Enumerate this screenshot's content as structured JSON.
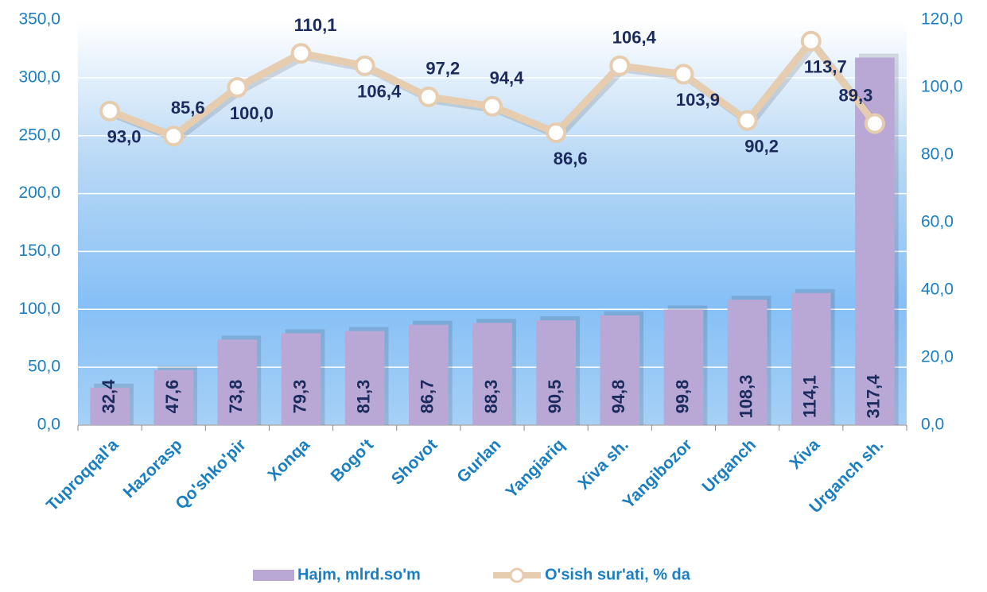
{
  "chart_data": {
    "type": "bar-line",
    "categories": [
      "Tuproqqal'a",
      "Hazorasp",
      "Qo'shko'pir",
      "Xonqa",
      "Bogo't",
      "Shovot",
      "Gurlan",
      "Yangiariq",
      "Xiva sh.",
      "Yangibozor",
      "Urganch",
      "Xiva",
      "Urganch sh."
    ],
    "series": [
      {
        "name": "Hajm, mlrd.so'm",
        "type": "bar",
        "color": "#b9a8d6",
        "values": [
          32.4,
          47.6,
          73.8,
          79.3,
          81.3,
          86.7,
          88.3,
          90.5,
          94.8,
          99.8,
          108.3,
          114.1,
          317.4
        ],
        "value_labels": [
          "32,4",
          "47,6",
          "73,8",
          "79,3",
          "81,3",
          "86,7",
          "88,3",
          "90,5",
          "94,8",
          "99,8",
          "108,3",
          "114,1",
          "317,4"
        ]
      },
      {
        "name": "O'sish sur'ati, % da",
        "type": "line",
        "axis": "y2",
        "color": "#e6cdb0",
        "values": [
          93.0,
          85.6,
          100.0,
          110.1,
          106.4,
          97.2,
          94.4,
          86.6,
          106.4,
          103.9,
          90.2,
          113.7,
          89.3
        ],
        "value_labels": [
          "93,0",
          "85,6",
          "100,0",
          "110,1",
          "106,4",
          "97,2",
          "94,4",
          "86,6",
          "106,4",
          "103,9",
          "90,2",
          "113,7",
          "89,3"
        ]
      }
    ],
    "ylim": [
      0,
      350
    ],
    "yticks": [
      {
        "value": 0,
        "label": "0,0"
      },
      {
        "value": 50,
        "label": "50,0"
      },
      {
        "value": 100,
        "label": "100,0"
      },
      {
        "value": 150,
        "label": "150,0"
      },
      {
        "value": 200,
        "label": "200,0"
      },
      {
        "value": 250,
        "label": "250,0"
      },
      {
        "value": 300,
        "label": "300,0"
      },
      {
        "value": 350,
        "label": "350,0"
      }
    ],
    "y2lim": [
      0,
      120
    ],
    "y2ticks": [
      {
        "value": 0,
        "label": "0,0"
      },
      {
        "value": 20,
        "label": "20,0"
      },
      {
        "value": 40,
        "label": "40,0"
      },
      {
        "value": 60,
        "label": "60,0"
      },
      {
        "value": 80,
        "label": "80,0"
      },
      {
        "value": 100,
        "label": "100,0"
      },
      {
        "value": 120,
        "label": "120,0"
      }
    ],
    "grid": true,
    "legend": "bottom"
  }
}
